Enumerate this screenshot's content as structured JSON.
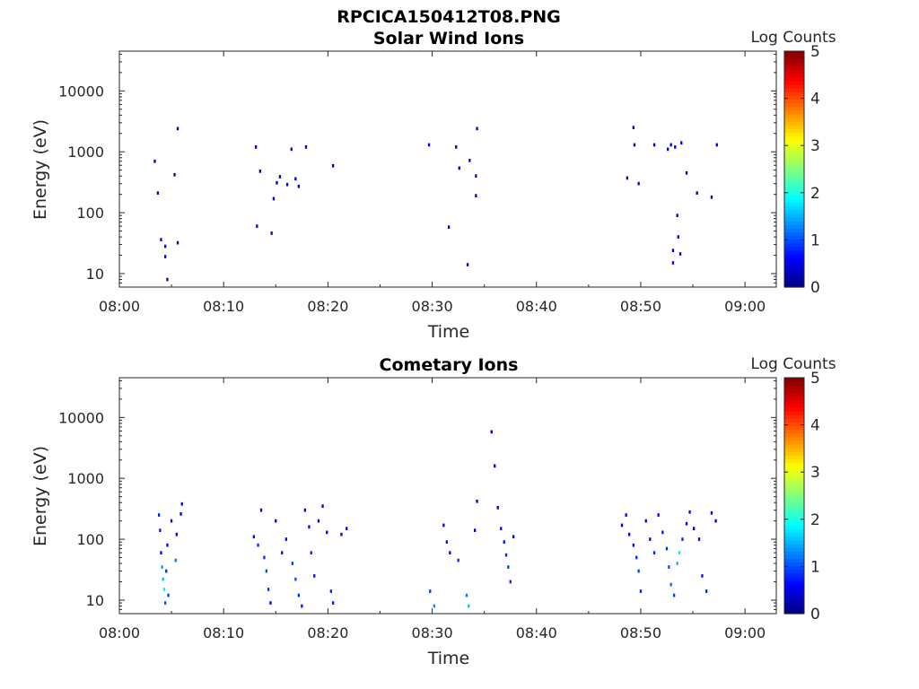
{
  "figure_title": "RPCICA150412T08.PNG",
  "colorbar": {
    "label": "Log Counts",
    "ticks": [
      "0",
      "1",
      "2",
      "3",
      "4",
      "5"
    ],
    "range": [
      0,
      5
    ],
    "colormap": "jet"
  },
  "chart_data": [
    {
      "type": "heatmap",
      "title": "Solar Wind Ions",
      "xlabel": "Time",
      "ylabel": "Energy (eV)",
      "x_ticks": [
        "08:00",
        "08:10",
        "08:20",
        "08:30",
        "08:40",
        "08:50",
        "09:00"
      ],
      "x_range_minutes": [
        0,
        63
      ],
      "y_ticks": [
        "10",
        "100",
        "1000",
        "10000"
      ],
      "y_scale": "log",
      "y_range": [
        6,
        45000
      ],
      "color_value": "log counts",
      "cells": [
        [
          3.4,
          700,
          0.4
        ],
        [
          3.7,
          210,
          0.3
        ],
        [
          4.0,
          36,
          0.3
        ],
        [
          4.4,
          28,
          0.6
        ],
        [
          4.4,
          19,
          0.5
        ],
        [
          4.6,
          8,
          0.3
        ],
        [
          5.3,
          420,
          0.3
        ],
        [
          5.6,
          2400,
          0.3
        ],
        [
          5.6,
          32,
          0.3
        ],
        [
          13.1,
          1200,
          0.5
        ],
        [
          13.2,
          60,
          0.6
        ],
        [
          13.5,
          480,
          0.4
        ],
        [
          14.6,
          46,
          0.3
        ],
        [
          14.8,
          170,
          0.3
        ],
        [
          15.1,
          310,
          0.3
        ],
        [
          15.4,
          390,
          0.3
        ],
        [
          16.1,
          290,
          0.4
        ],
        [
          16.5,
          1100,
          0.5
        ],
        [
          16.9,
          360,
          0.4
        ],
        [
          17.2,
          270,
          0.3
        ],
        [
          17.9,
          1200,
          0.4
        ],
        [
          20.5,
          590,
          0.3
        ],
        [
          29.7,
          1300,
          0.5
        ],
        [
          31.6,
          58,
          0.3
        ],
        [
          32.3,
          1200,
          0.3
        ],
        [
          32.6,
          540,
          0.3
        ],
        [
          33.4,
          14,
          0.5
        ],
        [
          33.6,
          720,
          0.3
        ],
        [
          34.2,
          400,
          0.6
        ],
        [
          34.2,
          190,
          0.3
        ],
        [
          34.3,
          2400,
          0.3
        ],
        [
          48.7,
          370,
          0.4
        ],
        [
          49.3,
          2500,
          0.4
        ],
        [
          49.4,
          1300,
          0.3
        ],
        [
          49.8,
          300,
          0.3
        ],
        [
          51.3,
          1300,
          0.3
        ],
        [
          52.6,
          1100,
          0.5
        ],
        [
          52.9,
          1300,
          0.4
        ],
        [
          53.1,
          24,
          0.4
        ],
        [
          53.1,
          15,
          0.6
        ],
        [
          53.3,
          1200,
          0.5
        ],
        [
          53.5,
          90,
          0.4
        ],
        [
          53.6,
          40,
          0.3
        ],
        [
          53.8,
          21,
          0.4
        ],
        [
          53.9,
          1400,
          0.4
        ],
        [
          54.4,
          450,
          0.3
        ],
        [
          55.4,
          210,
          0.3
        ],
        [
          56.8,
          180,
          0.3
        ],
        [
          57.3,
          1300,
          0.3
        ]
      ]
    },
    {
      "type": "heatmap",
      "title": "Cometary Ions",
      "xlabel": "Time",
      "ylabel": "Energy (eV)",
      "x_ticks": [
        "08:00",
        "08:10",
        "08:20",
        "08:30",
        "08:40",
        "08:50",
        "09:00"
      ],
      "x_range_minutes": [
        0,
        63
      ],
      "y_ticks": [
        "10",
        "100",
        "1000",
        "10000"
      ],
      "y_scale": "log",
      "y_range": [
        6,
        45000
      ],
      "color_value": "log counts",
      "cells": [
        [
          3.8,
          250,
          0.8
        ],
        [
          3.9,
          140,
          0.7
        ],
        [
          4.0,
          60,
          0.6
        ],
        [
          4.1,
          35,
          1.4
        ],
        [
          4.2,
          22,
          1.6
        ],
        [
          4.3,
          15,
          1.8
        ],
        [
          4.4,
          9,
          1.0
        ],
        [
          4.5,
          30,
          0.8
        ],
        [
          4.6,
          80,
          0.6
        ],
        [
          4.7,
          12,
          0.9
        ],
        [
          5.0,
          200,
          0.6
        ],
        [
          5.4,
          45,
          1.2
        ],
        [
          5.5,
          120,
          0.5
        ],
        [
          5.9,
          260,
          0.5
        ],
        [
          6.0,
          380,
          0.4
        ],
        [
          12.9,
          110,
          0.7
        ],
        [
          13.3,
          80,
          0.8
        ],
        [
          13.6,
          300,
          0.5
        ],
        [
          13.9,
          50,
          0.8
        ],
        [
          14.1,
          30,
          1.0
        ],
        [
          14.3,
          15,
          0.9
        ],
        [
          14.5,
          9,
          0.6
        ],
        [
          15.0,
          200,
          0.5
        ],
        [
          15.6,
          60,
          0.7
        ],
        [
          16.0,
          100,
          0.7
        ],
        [
          16.6,
          40,
          0.9
        ],
        [
          16.9,
          22,
          1.0
        ],
        [
          17.2,
          12,
          0.8
        ],
        [
          17.5,
          8,
          0.7
        ],
        [
          17.8,
          300,
          0.5
        ],
        [
          18.2,
          160,
          0.6
        ],
        [
          18.4,
          60,
          0.8
        ],
        [
          18.7,
          25,
          0.7
        ],
        [
          19.1,
          200,
          0.5
        ],
        [
          19.5,
          350,
          0.4
        ],
        [
          19.9,
          130,
          0.5
        ],
        [
          20.3,
          14,
          0.8
        ],
        [
          20.5,
          9,
          0.7
        ],
        [
          21.3,
          120,
          0.6
        ],
        [
          21.8,
          150,
          0.6
        ],
        [
          29.8,
          14,
          0.9
        ],
        [
          30.2,
          8,
          1.3
        ],
        [
          31.1,
          170,
          0.5
        ],
        [
          31.4,
          90,
          0.7
        ],
        [
          31.7,
          60,
          0.6
        ],
        [
          32.5,
          45,
          0.8
        ],
        [
          33.3,
          12,
          1.2
        ],
        [
          33.5,
          8,
          1.6
        ],
        [
          34.1,
          140,
          0.5
        ],
        [
          34.3,
          420,
          0.4
        ],
        [
          35.7,
          5800,
          0.3
        ],
        [
          36.0,
          1600,
          0.3
        ],
        [
          36.3,
          330,
          0.4
        ],
        [
          36.6,
          150,
          0.6
        ],
        [
          36.9,
          90,
          0.7
        ],
        [
          37.1,
          55,
          0.8
        ],
        [
          37.3,
          35,
          0.9
        ],
        [
          37.5,
          20,
          0.8
        ],
        [
          37.8,
          110,
          0.5
        ],
        [
          48.2,
          170,
          0.5
        ],
        [
          48.6,
          250,
          0.6
        ],
        [
          48.9,
          120,
          0.6
        ],
        [
          49.3,
          80,
          0.7
        ],
        [
          49.6,
          50,
          0.8
        ],
        [
          49.8,
          30,
          0.9
        ],
        [
          50.0,
          14,
          0.8
        ],
        [
          50.5,
          200,
          0.5
        ],
        [
          50.9,
          100,
          0.6
        ],
        [
          51.3,
          60,
          0.8
        ],
        [
          51.7,
          250,
          0.5
        ],
        [
          52.1,
          130,
          0.7
        ],
        [
          52.5,
          70,
          0.8
        ],
        [
          52.7,
          35,
          1.0
        ],
        [
          52.9,
          18,
          1.1
        ],
        [
          53.2,
          12,
          0.9
        ],
        [
          53.5,
          40,
          1.5
        ],
        [
          53.7,
          60,
          1.8
        ],
        [
          54.0,
          100,
          0.8
        ],
        [
          54.4,
          180,
          0.6
        ],
        [
          54.7,
          280,
          0.5
        ],
        [
          55.1,
          150,
          0.5
        ],
        [
          55.6,
          100,
          0.6
        ],
        [
          55.9,
          25,
          0.7
        ],
        [
          56.3,
          14,
          0.8
        ],
        [
          56.8,
          270,
          0.5
        ],
        [
          57.2,
          200,
          0.4
        ]
      ]
    }
  ]
}
